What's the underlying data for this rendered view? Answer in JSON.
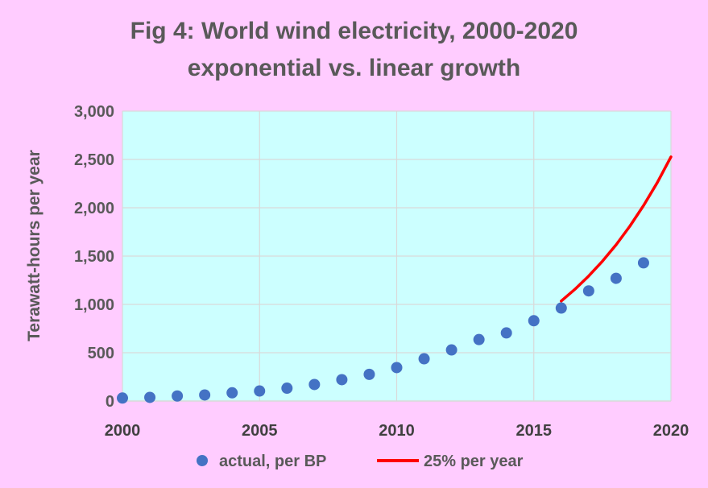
{
  "chart_data": {
    "type": "scatter",
    "title": "Fig 4: World wind electricity, 2000-2020",
    "subtitle": "exponential vs. linear growth",
    "xlabel": "",
    "ylabel": "Terawatt-hours per year",
    "xlim": [
      2000,
      2020
    ],
    "ylim": [
      0,
      3000
    ],
    "x_ticks": [
      2000,
      2005,
      2010,
      2015,
      2020
    ],
    "y_ticks": [
      0,
      500,
      1000,
      1500,
      2000,
      2500,
      3000
    ],
    "y_tick_labels": [
      "0",
      "500",
      "1,000",
      "1,500",
      "2,000",
      "2,500",
      "3,000"
    ],
    "grid": true,
    "legend_position": "bottom",
    "series": [
      {
        "name": "actual, per BP",
        "kind": "scatter",
        "color": "#4472c4",
        "x": [
          2000,
          2001,
          2002,
          2003,
          2004,
          2005,
          2006,
          2007,
          2008,
          2009,
          2010,
          2011,
          2012,
          2013,
          2014,
          2015,
          2016,
          2017,
          2018,
          2019
        ],
        "y": [
          31,
          38,
          52,
          63,
          85,
          104,
          133,
          171,
          221,
          276,
          346,
          437,
          529,
          636,
          705,
          831,
          962,
          1140,
          1270,
          1430
        ]
      },
      {
        "name": "25% per year",
        "kind": "line",
        "color": "#ff0000",
        "x": [
          2016,
          2016.5,
          2017,
          2017.5,
          2018,
          2018.5,
          2019,
          2019.5,
          2020
        ],
        "y": [
          1035,
          1157,
          1294,
          1447,
          1617,
          1808,
          2022,
          2260,
          2527
        ]
      }
    ],
    "plot_bg_color": "#ccffff",
    "page_bg_color": "#ffccff"
  }
}
